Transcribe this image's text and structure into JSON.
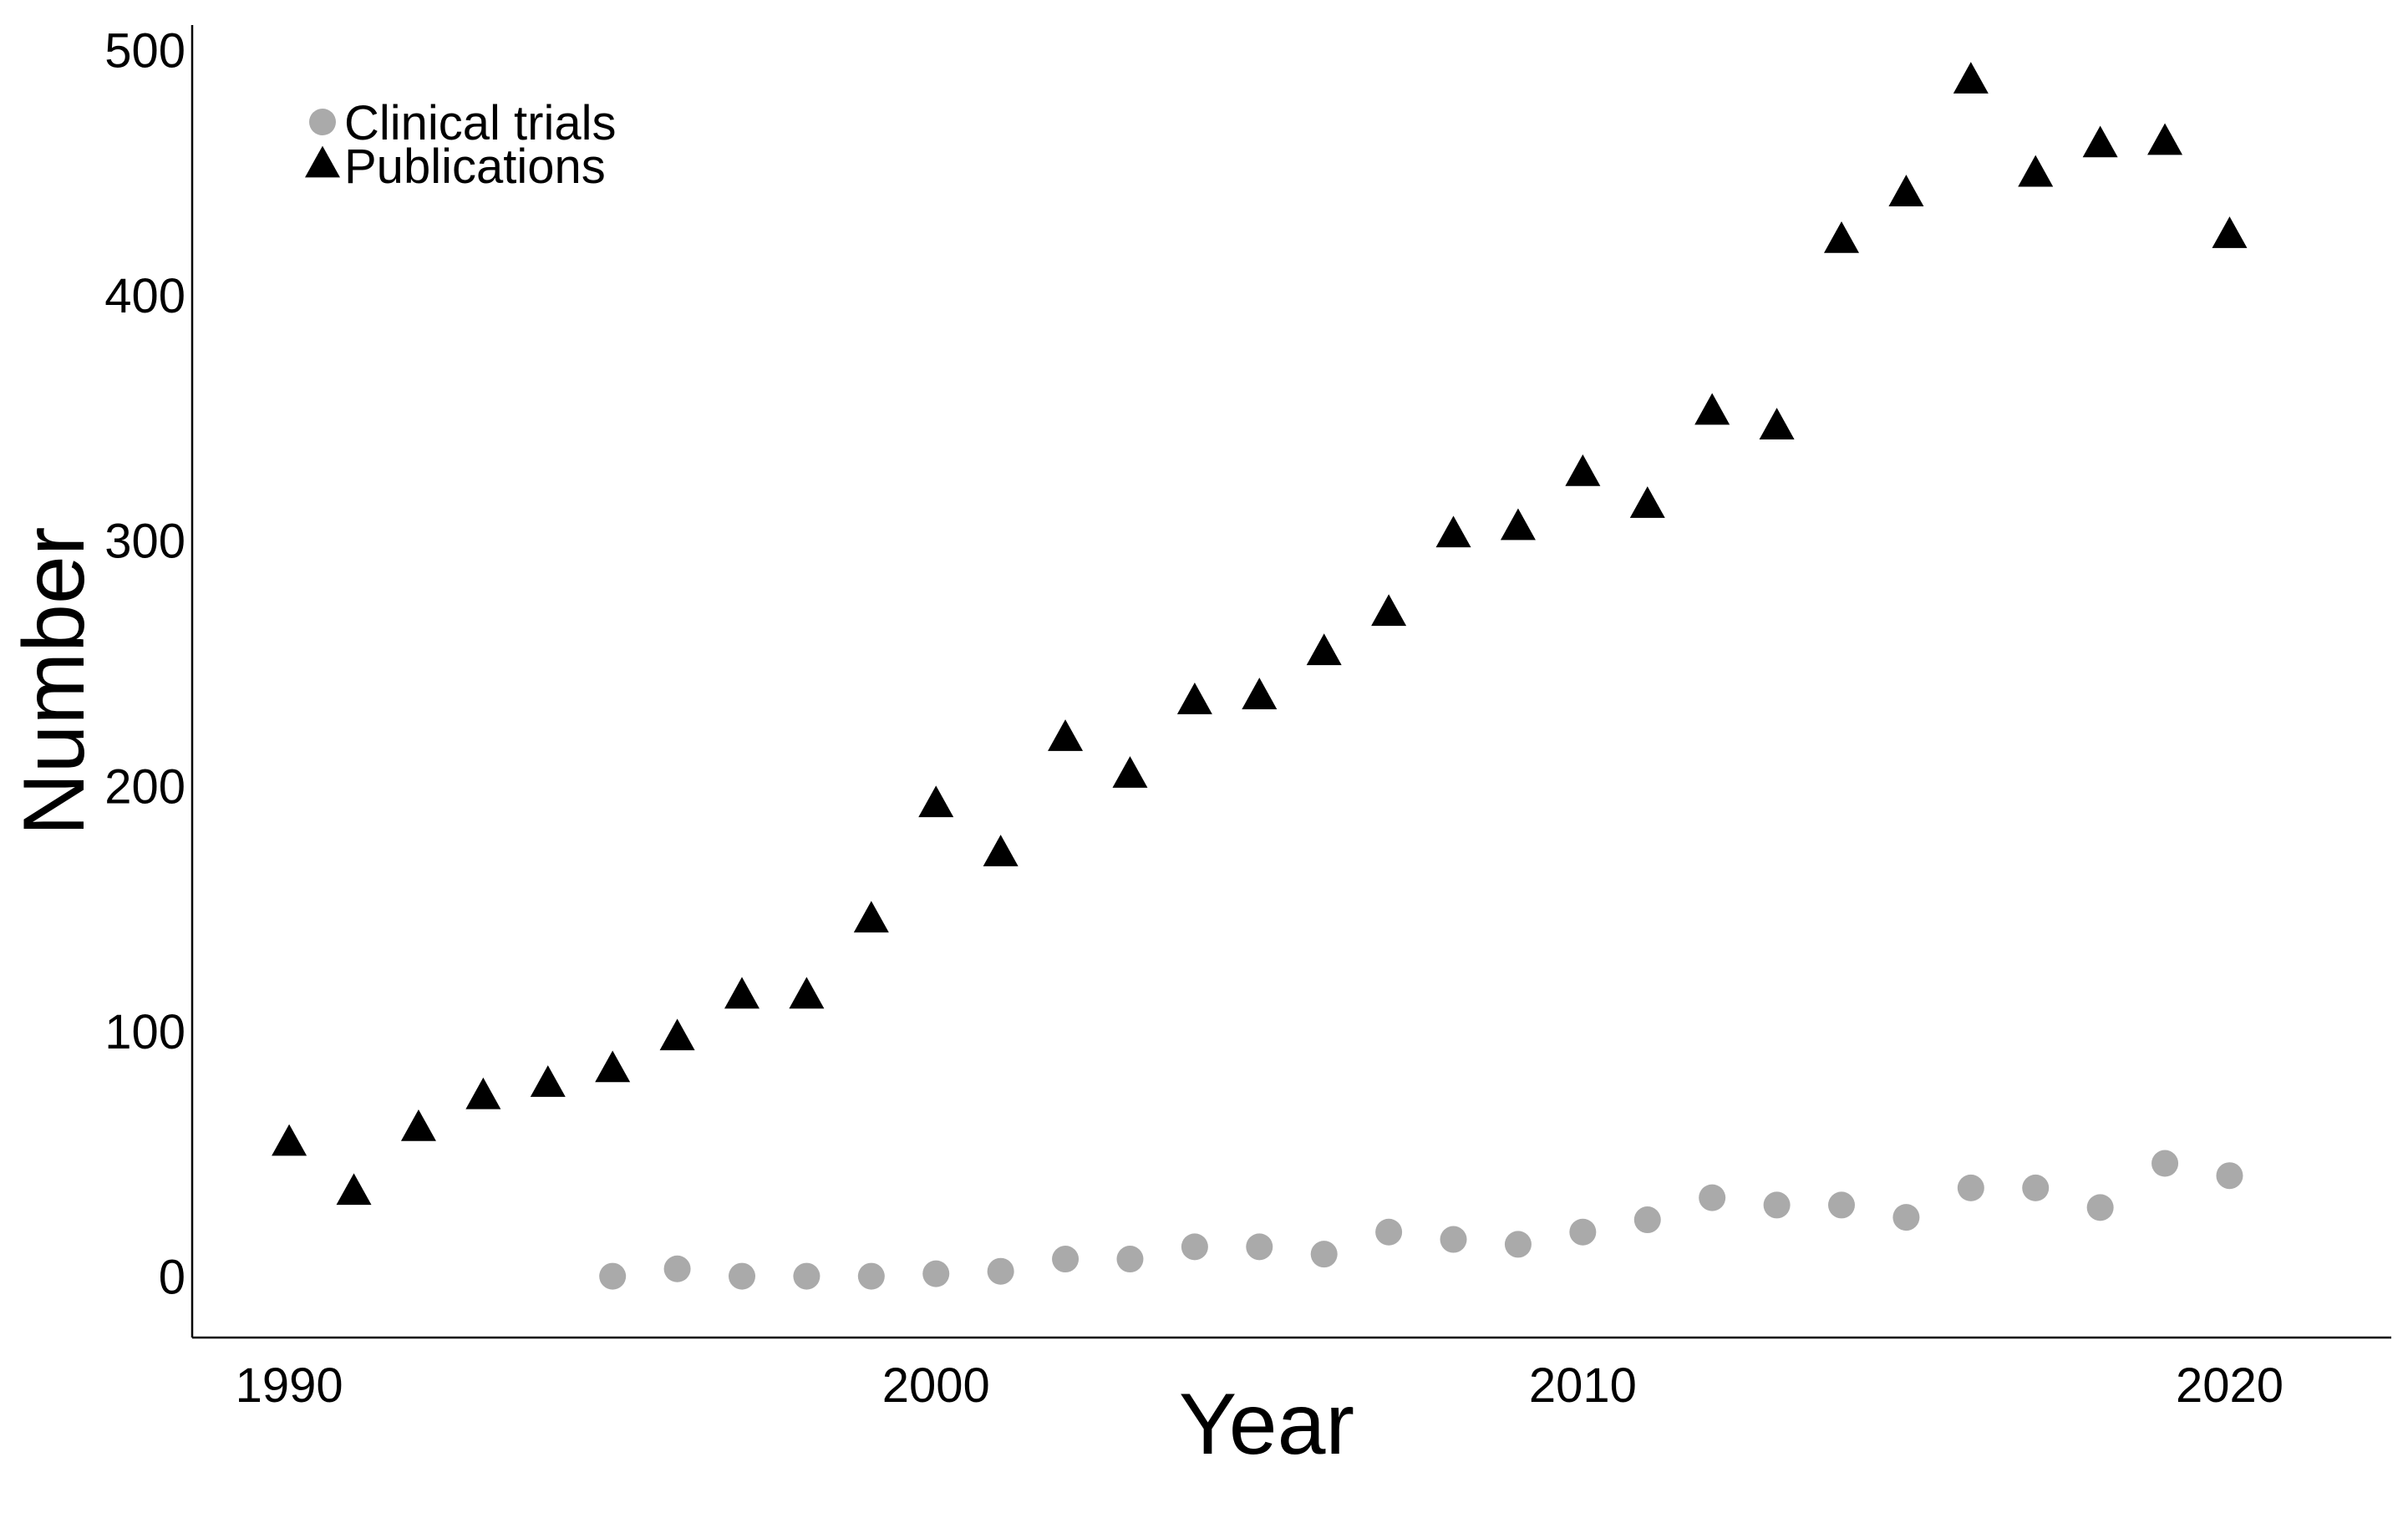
{
  "chart_data": {
    "type": "scatter",
    "title": "",
    "xlabel": "Year",
    "ylabel": "Number",
    "xlim": [
      1988.5,
      2022.5
    ],
    "ylim": [
      -25,
      510
    ],
    "x_ticks": [
      1990,
      2000,
      2010,
      2020
    ],
    "y_ticks": [
      0,
      100,
      200,
      300,
      400,
      500
    ],
    "grid": false,
    "legend_position": "top-left",
    "series": [
      {
        "name": "Clinical trials",
        "marker": "circle",
        "color": "#aaaaaa",
        "x": [
          1995,
          1996,
          1997,
          1998,
          1999,
          2000,
          2001,
          2002,
          2003,
          2004,
          2005,
          2006,
          2007,
          2008,
          2009,
          2010,
          2011,
          2012,
          2013,
          2014,
          2015,
          2016,
          2017,
          2018,
          2019,
          2020
        ],
        "y": [
          0,
          3,
          0,
          0,
          0,
          1,
          2,
          7,
          7,
          12,
          12,
          9,
          18,
          15,
          13,
          18,
          23,
          32,
          29,
          29,
          24,
          36,
          36,
          28,
          46,
          41
        ]
      },
      {
        "name": "Publications",
        "marker": "triangle",
        "color": "#000000",
        "x": [
          1990,
          1991,
          1992,
          1993,
          1994,
          1995,
          1996,
          1997,
          1998,
          1999,
          2000,
          2001,
          2002,
          2003,
          2004,
          2005,
          2006,
          2007,
          2008,
          2009,
          2010,
          2011,
          2012,
          2013,
          2014,
          2015,
          2016,
          2017,
          2018,
          2019,
          2020
        ],
        "y": [
          54,
          34,
          60,
          73,
          78,
          84,
          97,
          114,
          114,
          145,
          192,
          172,
          219,
          204,
          234,
          236,
          254,
          270,
          302,
          305,
          327,
          314,
          352,
          346,
          422,
          441,
          487,
          449,
          461,
          462,
          424
        ]
      }
    ]
  }
}
